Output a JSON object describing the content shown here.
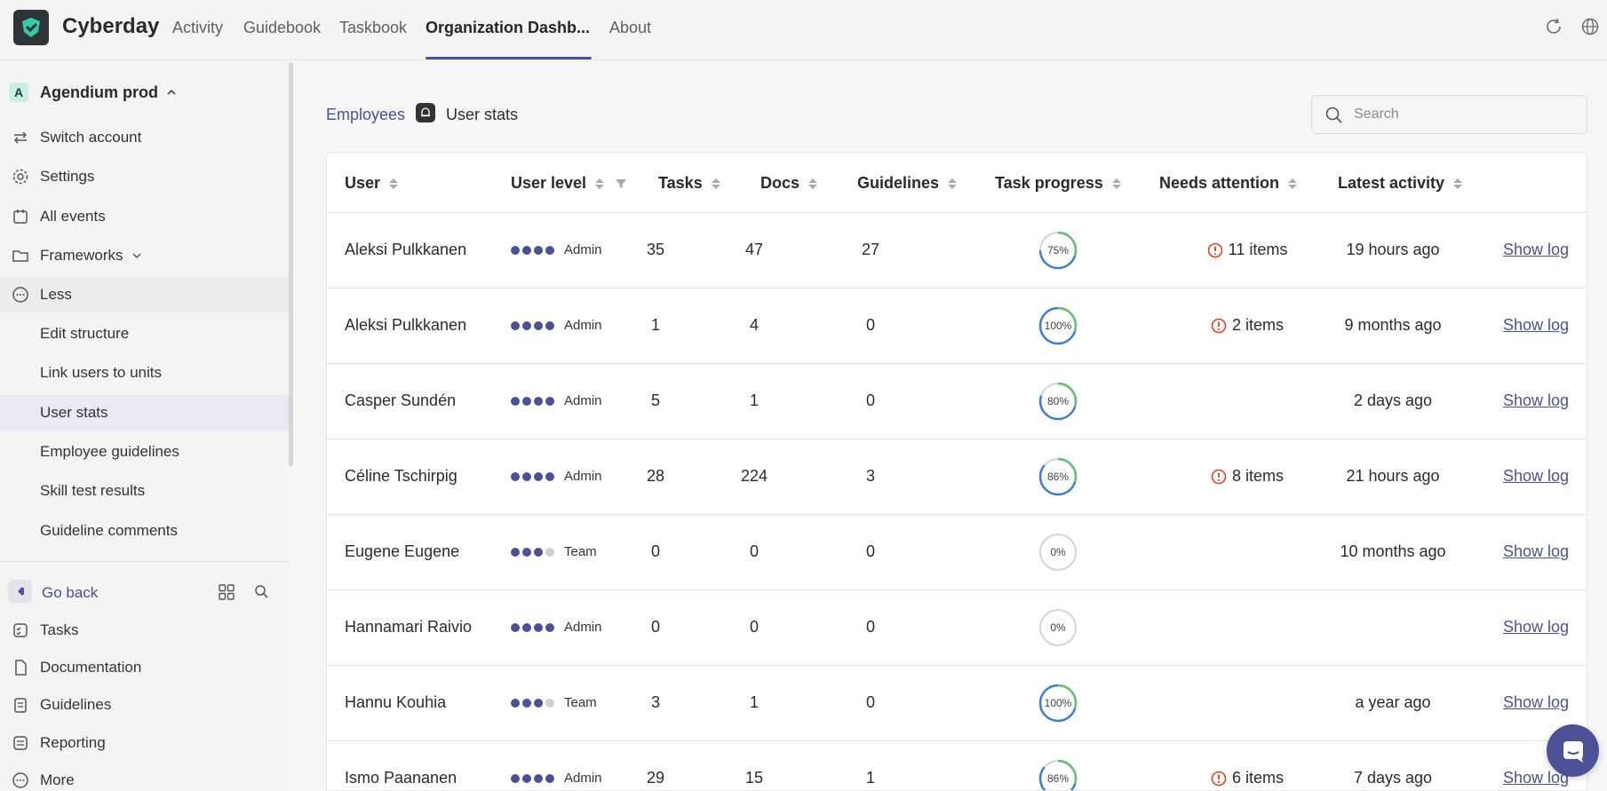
{
  "app": {
    "brand": "Cyberday"
  },
  "nav": {
    "items": [
      "Activity",
      "Guidebook",
      "Taskbook",
      "Organization Dashb...",
      "About"
    ],
    "active_index": 3
  },
  "sidebar": {
    "org_initial": "A",
    "org_name": "Agendium prod",
    "items": [
      {
        "label": "Switch account",
        "icon": "switch-icon"
      },
      {
        "label": "Settings",
        "icon": "gear-icon"
      },
      {
        "label": "All events",
        "icon": "calendar-icon"
      },
      {
        "label": "Frameworks",
        "icon": "folder-icon"
      },
      {
        "label": "Less",
        "icon": "more-circle-icon"
      }
    ],
    "sub_items": [
      "Edit structure",
      "Link users to units",
      "User stats",
      "Employee guidelines",
      "Skill test results",
      "Guideline comments"
    ],
    "selected_sub": "User stats",
    "go_back": "Go back",
    "bottom_items": [
      {
        "label": "Tasks",
        "icon": "tasks-icon"
      },
      {
        "label": "Documentation",
        "icon": "document-icon"
      },
      {
        "label": "Guidelines",
        "icon": "clipboard-icon"
      },
      {
        "label": "Reporting",
        "icon": "report-icon"
      },
      {
        "label": "More",
        "icon": "more-circle-icon"
      }
    ]
  },
  "breadcrumb": {
    "parent": "Employees",
    "current": "User stats"
  },
  "search": {
    "placeholder": "Search",
    "value": ""
  },
  "table": {
    "columns": [
      "User",
      "User level",
      "Tasks",
      "Docs",
      "Guidelines",
      "Task progress",
      "Needs attention",
      "Latest activity"
    ],
    "log_label": "Show log",
    "rows": [
      {
        "user": "Aleksi Pulkkanen",
        "level": "Admin",
        "level_dots": 4,
        "tasks": "35",
        "docs": "47",
        "guidelines": "27",
        "progress": 75,
        "progress_label": "75%",
        "attention": "11 items",
        "activity": "19 hours ago"
      },
      {
        "user": "Aleksi Pulkkanen",
        "level": "Admin",
        "level_dots": 4,
        "tasks": "1",
        "docs": "4",
        "guidelines": "0",
        "progress": 100,
        "progress_label": "100%",
        "attention": "2 items",
        "activity": "9 months ago"
      },
      {
        "user": "Casper Sundén",
        "level": "Admin",
        "level_dots": 4,
        "tasks": "5",
        "docs": "1",
        "guidelines": "0",
        "progress": 80,
        "progress_label": "80%",
        "attention": "",
        "activity": "2 days ago"
      },
      {
        "user": "Céline Tschirpig",
        "level": "Admin",
        "level_dots": 4,
        "tasks": "28",
        "docs": "224",
        "guidelines": "3",
        "progress": 86,
        "progress_label": "86%",
        "attention": "8 items",
        "activity": "21 hours ago"
      },
      {
        "user": "Eugene Eugene",
        "level": "Team",
        "level_dots": 3,
        "tasks": "0",
        "docs": "0",
        "guidelines": "0",
        "progress": 0,
        "progress_label": "0%",
        "attention": "",
        "activity": "10 months ago"
      },
      {
        "user": "Hannamari Raivio",
        "level": "Admin",
        "level_dots": 4,
        "tasks": "0",
        "docs": "0",
        "guidelines": "0",
        "progress": 0,
        "progress_label": "0%",
        "attention": "",
        "activity": ""
      },
      {
        "user": "Hannu Kouhia",
        "level": "Team",
        "level_dots": 3,
        "tasks": "3",
        "docs": "1",
        "guidelines": "0",
        "progress": 100,
        "progress_label": "100%",
        "attention": "",
        "activity": "a year ago"
      },
      {
        "user": "Ismo Paananen",
        "level": "Admin",
        "level_dots": 4,
        "tasks": "29",
        "docs": "15",
        "guidelines": "1",
        "progress": 86,
        "progress_label": "86%",
        "attention": "6 items",
        "activity": "7 days ago"
      }
    ]
  },
  "colors": {
    "accent": "#4c5196",
    "progress_blue": "#3b7ddd",
    "progress_green": "#6cc070",
    "warning": "#e0421b"
  }
}
